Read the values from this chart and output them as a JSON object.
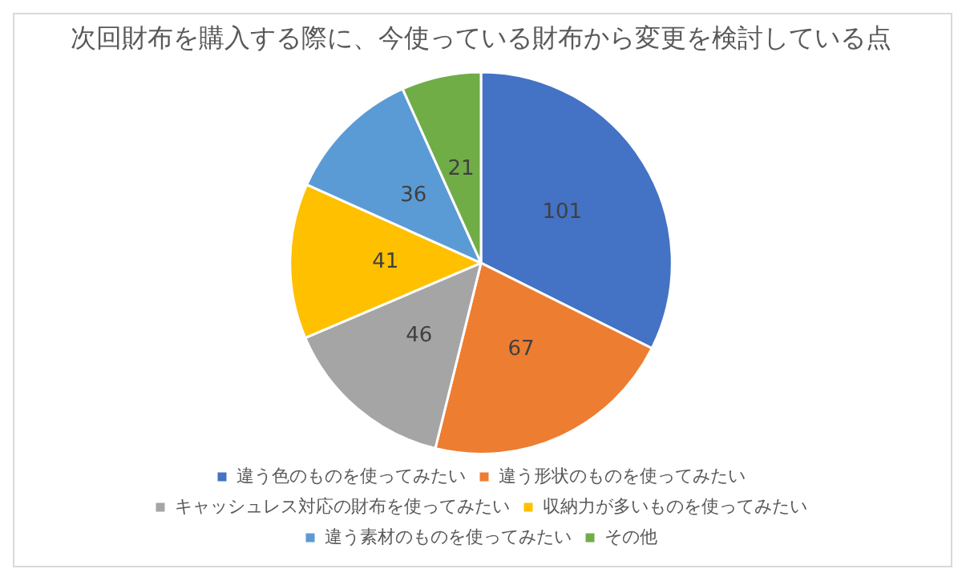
{
  "chart_data": {
    "type": "pie",
    "title": "次回財布を購入する際に、今使っている財布から変更を検討している点",
    "categories": [
      "違う色のものを使ってみたい",
      "違う形状のものを使ってみたい",
      "キャッシュレス対応の財布を使ってみたい",
      "収納力が多いものを使ってみたい",
      "違う素材のものを使ってみたい",
      "その他"
    ],
    "values": [
      101,
      67,
      46,
      41,
      36,
      21
    ],
    "colors": [
      "#4472c4",
      "#ed7d31",
      "#a5a5a5",
      "#ffc000",
      "#5b9bd5",
      "#70ad47"
    ],
    "data_labels": true,
    "legend": "bottom"
  }
}
